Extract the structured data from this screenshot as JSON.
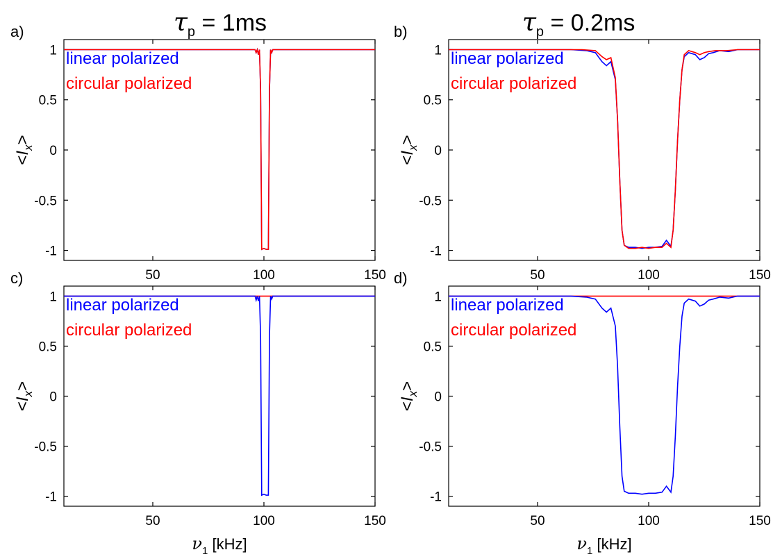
{
  "column_titles": [
    {
      "tau": "τ",
      "sub": "p",
      "rest": " = 1ms"
    },
    {
      "tau": "τ",
      "sub": "p",
      "rest": " = 0.2ms"
    }
  ],
  "colors": {
    "linear": "#0000ff",
    "circular": "#ff0000"
  },
  "chart_data": [
    {
      "type": "line",
      "panel_label": "a)",
      "pulse": "1ms",
      "xlim": [
        10,
        150
      ],
      "ylim": [
        -1.1,
        1.1
      ],
      "xticks": [
        "50",
        "100",
        "150"
      ],
      "yticks": [
        "-1",
        "-0.5",
        "0",
        "0.5",
        "1"
      ],
      "xlabel": "",
      "ylabel": "<I_x>",
      "series": [
        {
          "name": "linear polarized",
          "color": "#0000ff",
          "points": [
            [
              10,
              1
            ],
            [
              96,
              1
            ],
            [
              96.5,
              0.97
            ],
            [
              97,
              1
            ],
            [
              97.5,
              0.95
            ],
            [
              98,
              1
            ],
            [
              98.5,
              0.6
            ],
            [
              99,
              -0.99
            ],
            [
              100,
              -0.98
            ],
            [
              101,
              -0.99
            ],
            [
              102,
              -0.99
            ],
            [
              102.5,
              0.6
            ],
            [
              103,
              1
            ],
            [
              103.5,
              0.97
            ],
            [
              104,
              1
            ],
            [
              150,
              1
            ]
          ]
        },
        {
          "name": "circular polarized",
          "color": "#ff0000",
          "points": [
            [
              10,
              1
            ],
            [
              96,
              1
            ],
            [
              96.5,
              0.97
            ],
            [
              97,
              1
            ],
            [
              97.5,
              0.95
            ],
            [
              98,
              1
            ],
            [
              98.5,
              0.6
            ],
            [
              99,
              -0.99
            ],
            [
              100,
              -0.98
            ],
            [
              101,
              -0.99
            ],
            [
              102,
              -0.99
            ],
            [
              102.5,
              0.6
            ],
            [
              103,
              1
            ],
            [
              103.5,
              0.97
            ],
            [
              104,
              1
            ],
            [
              150,
              1
            ]
          ]
        }
      ]
    },
    {
      "type": "line",
      "panel_label": "b)",
      "pulse": "0.2ms",
      "xlim": [
        10,
        150
      ],
      "ylim": [
        -1.1,
        1.1
      ],
      "xticks": [
        "50",
        "100",
        "150"
      ],
      "yticks": [
        "-1",
        "-0.5",
        "0",
        "0.5",
        "1"
      ],
      "xlabel": "",
      "ylabel": "<I_x>",
      "series": [
        {
          "name": "linear polarized",
          "color": "#0000ff",
          "points": [
            [
              10,
              1
            ],
            [
              65,
              1
            ],
            [
              72,
              0.99
            ],
            [
              76,
              0.97
            ],
            [
              79,
              0.88
            ],
            [
              81,
              0.84
            ],
            [
              83,
              0.88
            ],
            [
              85,
              0.7
            ],
            [
              86,
              0.3
            ],
            [
              87,
              -0.3
            ],
            [
              88,
              -0.8
            ],
            [
              89,
              -0.95
            ],
            [
              91,
              -0.97
            ],
            [
              94,
              -0.97
            ],
            [
              97,
              -0.98
            ],
            [
              100,
              -0.97
            ],
            [
              103,
              -0.97
            ],
            [
              106,
              -0.96
            ],
            [
              108,
              -0.9
            ],
            [
              109,
              -0.93
            ],
            [
              110,
              -0.96
            ],
            [
              111,
              -0.8
            ],
            [
              112,
              -0.4
            ],
            [
              113,
              0.1
            ],
            [
              114,
              0.5
            ],
            [
              115,
              0.8
            ],
            [
              116,
              0.93
            ],
            [
              118,
              0.97
            ],
            [
              121,
              0.95
            ],
            [
              123,
              0.9
            ],
            [
              125,
              0.92
            ],
            [
              127,
              0.96
            ],
            [
              129,
              0.97
            ],
            [
              132,
              0.99
            ],
            [
              136,
              0.98
            ],
            [
              140,
              1
            ],
            [
              150,
              1
            ]
          ]
        },
        {
          "name": "circular polarized",
          "color": "#ff0000",
          "points": [
            [
              10,
              1
            ],
            [
              70,
              1
            ],
            [
              76,
              0.99
            ],
            [
              79,
              0.93
            ],
            [
              81,
              0.9
            ],
            [
              83,
              0.92
            ],
            [
              85,
              0.72
            ],
            [
              86,
              0.3
            ],
            [
              87,
              -0.3
            ],
            [
              88,
              -0.8
            ],
            [
              89,
              -0.95
            ],
            [
              91,
              -0.98
            ],
            [
              94,
              -0.98
            ],
            [
              97,
              -0.97
            ],
            [
              100,
              -0.98
            ],
            [
              103,
              -0.97
            ],
            [
              106,
              -0.97
            ],
            [
              108,
              -0.93
            ],
            [
              109,
              -0.95
            ],
            [
              110,
              -0.97
            ],
            [
              111,
              -0.8
            ],
            [
              112,
              -0.4
            ],
            [
              113,
              0.1
            ],
            [
              114,
              0.5
            ],
            [
              115,
              0.8
            ],
            [
              116,
              0.95
            ],
            [
              118,
              0.99
            ],
            [
              121,
              0.97
            ],
            [
              123,
              0.95
            ],
            [
              125,
              0.97
            ],
            [
              127,
              0.98
            ],
            [
              130,
              0.99
            ],
            [
              135,
              0.99
            ],
            [
              140,
              1
            ],
            [
              150,
              1
            ]
          ]
        }
      ]
    },
    {
      "type": "line",
      "panel_label": "c)",
      "pulse": "1ms",
      "xlim": [
        10,
        150
      ],
      "ylim": [
        -1.1,
        1.1
      ],
      "xticks": [
        "50",
        "100",
        "150"
      ],
      "yticks": [
        "-1",
        "-0.5",
        "0",
        "0.5",
        "1"
      ],
      "xlabel": "[kHz]",
      "xlabel_symbol": "ν",
      "xlabel_sub": "1",
      "ylabel": "<I_x>",
      "series": [
        {
          "name": "circular polarized",
          "color": "#ff0000",
          "points": [
            [
              10,
              1
            ],
            [
              150,
              1
            ]
          ]
        },
        {
          "name": "linear polarized",
          "color": "#0000ff",
          "points": [
            [
              10,
              1
            ],
            [
              96,
              1
            ],
            [
              96.5,
              0.96
            ],
            [
              97,
              1
            ],
            [
              97.5,
              0.95
            ],
            [
              98,
              1
            ],
            [
              98.5,
              0.6
            ],
            [
              99,
              -0.99
            ],
            [
              100,
              -0.98
            ],
            [
              101,
              -0.99
            ],
            [
              102,
              -0.99
            ],
            [
              102.5,
              0.6
            ],
            [
              103,
              1
            ],
            [
              103.5,
              0.97
            ],
            [
              104,
              1
            ],
            [
              150,
              1
            ]
          ]
        }
      ]
    },
    {
      "type": "line",
      "panel_label": "d)",
      "pulse": "0.2ms",
      "xlim": [
        10,
        150
      ],
      "ylim": [
        -1.1,
        1.1
      ],
      "xticks": [
        "50",
        "100",
        "150"
      ],
      "yticks": [
        "-1",
        "-0.5",
        "0",
        "0.5",
        "1"
      ],
      "xlabel": "[kHz]",
      "xlabel_symbol": "ν",
      "xlabel_sub": "1",
      "ylabel": "<I_x>",
      "series": [
        {
          "name": "circular polarized",
          "color": "#ff0000",
          "points": [
            [
              10,
              1
            ],
            [
              150,
              1
            ]
          ]
        },
        {
          "name": "linear polarized",
          "color": "#0000ff",
          "points": [
            [
              10,
              1
            ],
            [
              65,
              1
            ],
            [
              72,
              0.99
            ],
            [
              76,
              0.97
            ],
            [
              79,
              0.88
            ],
            [
              81,
              0.84
            ],
            [
              83,
              0.88
            ],
            [
              85,
              0.7
            ],
            [
              86,
              0.3
            ],
            [
              87,
              -0.3
            ],
            [
              88,
              -0.8
            ],
            [
              89,
              -0.95
            ],
            [
              91,
              -0.97
            ],
            [
              94,
              -0.97
            ],
            [
              97,
              -0.98
            ],
            [
              100,
              -0.97
            ],
            [
              103,
              -0.97
            ],
            [
              106,
              -0.96
            ],
            [
              108,
              -0.9
            ],
            [
              109,
              -0.93
            ],
            [
              110,
              -0.96
            ],
            [
              111,
              -0.8
            ],
            [
              112,
              -0.4
            ],
            [
              113,
              0.1
            ],
            [
              114,
              0.5
            ],
            [
              115,
              0.8
            ],
            [
              116,
              0.93
            ],
            [
              118,
              0.97
            ],
            [
              121,
              0.95
            ],
            [
              123,
              0.9
            ],
            [
              125,
              0.92
            ],
            [
              127,
              0.96
            ],
            [
              129,
              0.97
            ],
            [
              132,
              0.99
            ],
            [
              136,
              0.98
            ],
            [
              140,
              1
            ],
            [
              150,
              1
            ]
          ]
        }
      ]
    }
  ]
}
